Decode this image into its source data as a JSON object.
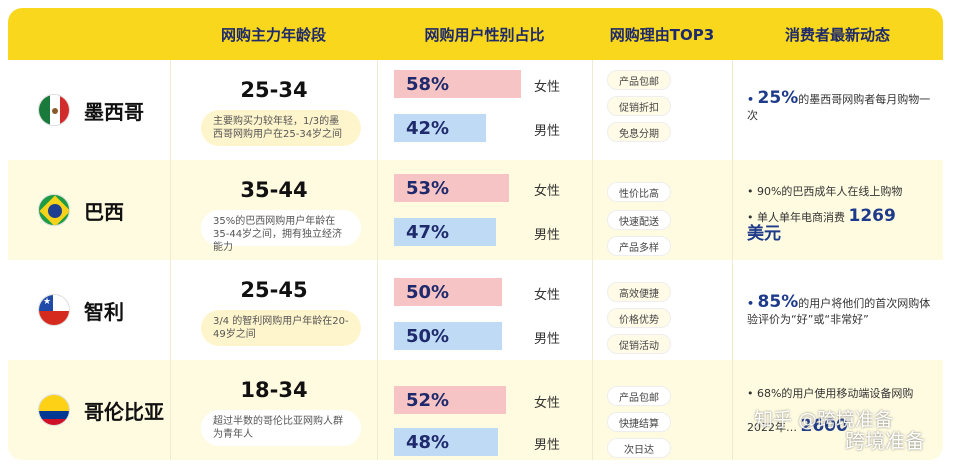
{
  "headers": [
    "网购主力年龄段",
    "网购用户性别占比",
    "网购理由TOP3",
    "消费者最新动态"
  ],
  "labels": {
    "female": "女性",
    "male": "男性"
  },
  "rows": [
    {
      "country": "墨西哥",
      "age_range": "25-34",
      "age_note": "主要购买力较年轻，1/3的墨西哥网购用户在25-34岁之间",
      "female_pct": "58%",
      "female_value": 58,
      "male_pct": "42%",
      "male_value": 42,
      "reasons": [
        "产品包邮",
        "促销折扣",
        "免息分期"
      ],
      "news": {
        "bullet1_prefix": "•",
        "bullet1_num": "25%",
        "bullet1_text": "的墨西哥网购者每月购物一次"
      }
    },
    {
      "country": "巴西",
      "age_range": "35-44",
      "age_note": "35%的巴西网购用户年龄在35-44岁之间，拥有独立经济能力",
      "female_pct": "53%",
      "female_value": 53,
      "male_pct": "47%",
      "male_value": 47,
      "reasons": [
        "性价比高",
        "快速配送",
        "产品多样"
      ],
      "news": {
        "bullet1_text": "• 90%的巴西成年人在线上购物",
        "bullet2_text": "• 单人单年电商消费",
        "bullet2_num": "1269",
        "bullet2_unit": "美元"
      }
    },
    {
      "country": "智利",
      "age_range": "25-45",
      "age_note": "3/4 的智利网购用户年龄在20-49岁之间",
      "female_pct": "50%",
      "female_value": 50,
      "male_pct": "50%",
      "male_value": 50,
      "reasons": [
        "高效便捷",
        "价格优势",
        "促销活动"
      ],
      "news": {
        "bullet1_prefix": "•",
        "bullet1_num": "85%",
        "bullet1_text": "的用户将他们的首次网购体验评价为“好”或“非常好”"
      }
    },
    {
      "country": "哥伦比亚",
      "age_range": "18-34",
      "age_note": "超过半数的哥伦比亚网购人群为青年人",
      "female_pct": "52%",
      "female_value": 52,
      "male_pct": "48%",
      "male_value": 48,
      "reasons": [
        "产品包邮",
        "快捷结算",
        "次日达"
      ],
      "news": {
        "bullet1_text": "• 68%的用户使用移动端设备网购",
        "bullet2_text": "2022年…",
        "bullet2_num": "2600"
      }
    }
  ],
  "watermark": {
    "line1": "知乎 @跨境准备",
    "line2": "跨境准备"
  },
  "colors": {
    "header": "#f8d71c",
    "female_bar": "#f6c4c4",
    "male_bar": "#bfdaf4",
    "accent": "#1e3a8a"
  }
}
